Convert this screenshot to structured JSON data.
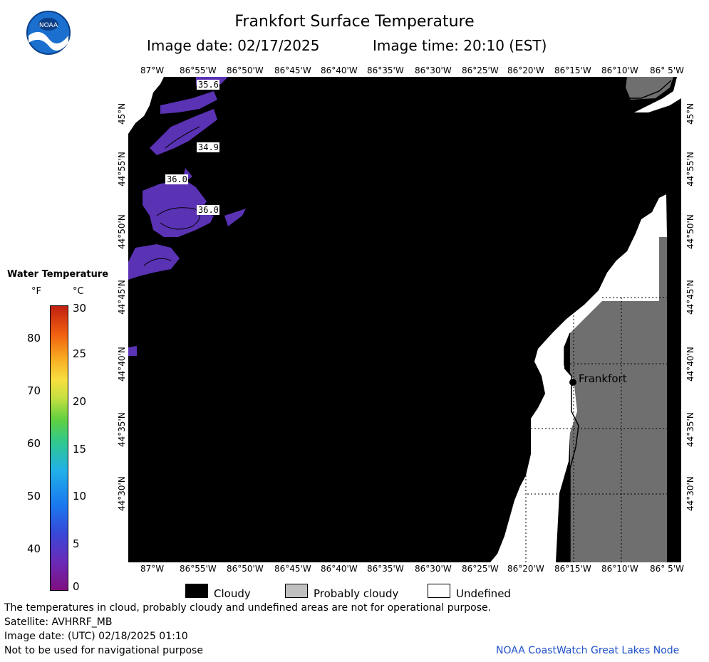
{
  "title": "Frankfort Surface Temperature",
  "image_date_label": "Image date: 02/17/2025",
  "image_time_label": "Image time: 20:10 (EST)",
  "lon_ticks": [
    "87°W",
    "86°55'W",
    "86°50'W",
    "86°45'W",
    "86°40'W",
    "86°35'W",
    "86°30'W",
    "86°25'W",
    "86°20'W",
    "86°15'W",
    "86°10'W",
    "86° 5'W"
  ],
  "lat_ticks": [
    "45°N",
    "44°55'N",
    "44°50'N",
    "44°45'N",
    "44°40'N",
    "44°35'N",
    "44°30'N"
  ],
  "contour_labels": [
    "35.6",
    "34.9",
    "36.0",
    "36.0"
  ],
  "city_label": "Frankfort",
  "legend": {
    "title": "Water Temperature",
    "unit_f": "°F",
    "unit_c": "°C",
    "f_ticks": [
      "80",
      "70",
      "60",
      "50",
      "40"
    ],
    "c_ticks": [
      "30",
      "25",
      "20",
      "15",
      "10",
      "5",
      "0"
    ]
  },
  "key": {
    "cloudy": "Cloudy",
    "probably_cloudy": "Probably cloudy",
    "undefined": "Undefined"
  },
  "colors": {
    "cloudy": "#000000",
    "probably_cloudy": "#c0c0c0",
    "undefined": "#ffffff",
    "land": "#6f6f6f",
    "water_cold": "#5a32b4",
    "credit": "#1e50c8"
  },
  "footer": {
    "note": "The temperatures in cloud, probably cloudy and undefined areas are not for operational purpose.",
    "satellite": "Satellite: AVHRRF_MB",
    "utc_date": "Image date: (UTC) 02/18/2025  01:10",
    "nav_note": "Not to be used for navigational purpose",
    "credit": "NOAA CoastWatch Great Lakes Node"
  }
}
